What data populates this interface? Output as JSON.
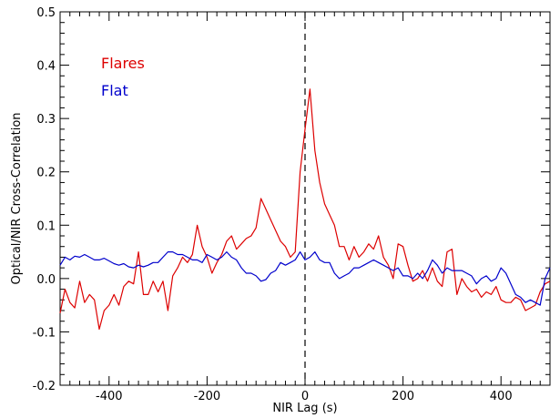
{
  "chart_data": {
    "type": "line",
    "xlabel": "NIR Lag (s)",
    "ylabel": "Optical/NIR Cross-Correlation",
    "xlim": [
      -500,
      500
    ],
    "ylim": [
      -0.2,
      0.5
    ],
    "x_ticks": [
      -400,
      -200,
      0,
      200,
      400
    ],
    "x_tick_labels": [
      "-400",
      "-200",
      "0",
      "200",
      "400"
    ],
    "y_ticks": [
      -0.2,
      -0.1,
      0.0,
      0.1,
      0.2,
      0.3,
      0.4,
      0.5
    ],
    "y_tick_labels": [
      "-0.2",
      "-0.1",
      "0.0",
      "0.1",
      "0.2",
      "0.3",
      "0.4",
      "0.5"
    ],
    "zero_lag_line": 0,
    "grid": false,
    "legend_position": "top-left",
    "series": [
      {
        "name": "Flares",
        "color": "#dd0000",
        "x": [
          -500,
          -490,
          -480,
          -470,
          -460,
          -450,
          -440,
          -430,
          -420,
          -410,
          -400,
          -390,
          -380,
          -370,
          -360,
          -350,
          -340,
          -330,
          -320,
          -310,
          -300,
          -290,
          -280,
          -270,
          -260,
          -250,
          -240,
          -230,
          -220,
          -210,
          -200,
          -190,
          -180,
          -170,
          -160,
          -150,
          -140,
          -130,
          -120,
          -110,
          -100,
          -90,
          -80,
          -70,
          -60,
          -50,
          -40,
          -30,
          -20,
          -10,
          0,
          10,
          20,
          30,
          40,
          50,
          60,
          70,
          80,
          90,
          100,
          110,
          120,
          130,
          140,
          150,
          160,
          170,
          180,
          190,
          200,
          210,
          220,
          230,
          240,
          250,
          260,
          270,
          280,
          290,
          300,
          310,
          320,
          330,
          340,
          350,
          360,
          370,
          380,
          390,
          400,
          410,
          420,
          430,
          440,
          450,
          460,
          470,
          480,
          490,
          500
        ],
        "values": [
          -0.065,
          -0.02,
          -0.045,
          -0.055,
          -0.005,
          -0.045,
          -0.03,
          -0.04,
          -0.095,
          -0.06,
          -0.05,
          -0.03,
          -0.05,
          -0.015,
          -0.005,
          -0.01,
          0.05,
          -0.03,
          -0.03,
          -0.005,
          -0.025,
          -0.005,
          -0.06,
          0.005,
          0.02,
          0.04,
          0.03,
          0.045,
          0.1,
          0.06,
          0.04,
          0.01,
          0.03,
          0.045,
          0.07,
          0.08,
          0.055,
          0.065,
          0.075,
          0.08,
          0.095,
          0.15,
          0.13,
          0.11,
          0.09,
          0.07,
          0.06,
          0.04,
          0.05,
          0.2,
          0.28,
          0.355,
          0.24,
          0.18,
          0.14,
          0.12,
          0.1,
          0.06,
          0.06,
          0.035,
          0.06,
          0.04,
          0.05,
          0.065,
          0.055,
          0.08,
          0.04,
          0.025,
          0.0,
          0.065,
          0.06,
          0.025,
          -0.005,
          0.0,
          0.015,
          -0.005,
          0.02,
          -0.005,
          -0.015,
          0.05,
          0.055,
          -0.03,
          0.0,
          -0.015,
          -0.025,
          -0.02,
          -0.035,
          -0.025,
          -0.03,
          -0.015,
          -0.04,
          -0.045,
          -0.045,
          -0.035,
          -0.04,
          -0.06,
          -0.055,
          -0.05,
          -0.025,
          -0.01,
          -0.005
        ]
      },
      {
        "name": "Flat",
        "color": "#0000cc",
        "x": [
          -500,
          -490,
          -480,
          -470,
          -460,
          -450,
          -440,
          -430,
          -420,
          -410,
          -400,
          -390,
          -380,
          -370,
          -360,
          -350,
          -340,
          -330,
          -320,
          -310,
          -300,
          -290,
          -280,
          -270,
          -260,
          -250,
          -240,
          -230,
          -220,
          -210,
          -200,
          -190,
          -180,
          -170,
          -160,
          -150,
          -140,
          -130,
          -120,
          -110,
          -100,
          -90,
          -80,
          -70,
          -60,
          -50,
          -40,
          -30,
          -20,
          -10,
          0,
          10,
          20,
          30,
          40,
          50,
          60,
          70,
          80,
          90,
          100,
          110,
          120,
          130,
          140,
          150,
          160,
          170,
          180,
          190,
          200,
          210,
          220,
          230,
          240,
          250,
          260,
          270,
          280,
          290,
          300,
          310,
          320,
          330,
          340,
          350,
          360,
          370,
          380,
          390,
          400,
          410,
          420,
          430,
          440,
          450,
          460,
          470,
          480,
          490,
          500
        ],
        "values": [
          0.025,
          0.04,
          0.035,
          0.042,
          0.04,
          0.045,
          0.04,
          0.035,
          0.035,
          0.038,
          0.033,
          0.028,
          0.025,
          0.028,
          0.022,
          0.02,
          0.025,
          0.022,
          0.025,
          0.03,
          0.03,
          0.04,
          0.05,
          0.05,
          0.045,
          0.045,
          0.04,
          0.035,
          0.035,
          0.03,
          0.045,
          0.04,
          0.035,
          0.04,
          0.05,
          0.04,
          0.035,
          0.02,
          0.01,
          0.01,
          0.005,
          -0.005,
          -0.002,
          0.01,
          0.015,
          0.03,
          0.025,
          0.03,
          0.035,
          0.05,
          0.035,
          0.04,
          0.05,
          0.035,
          0.03,
          0.03,
          0.01,
          0.0,
          0.005,
          0.01,
          0.02,
          0.02,
          0.025,
          0.03,
          0.035,
          0.03,
          0.025,
          0.02,
          0.015,
          0.02,
          0.005,
          0.005,
          0.0,
          0.01,
          0.0,
          0.015,
          0.035,
          0.025,
          0.01,
          0.02,
          0.015,
          0.015,
          0.015,
          0.01,
          0.005,
          -0.01,
          0.0,
          0.005,
          -0.005,
          0.0,
          0.02,
          0.01,
          -0.01,
          -0.03,
          -0.035,
          -0.045,
          -0.04,
          -0.045,
          -0.05,
          0.0,
          0.02
        ]
      }
    ]
  }
}
